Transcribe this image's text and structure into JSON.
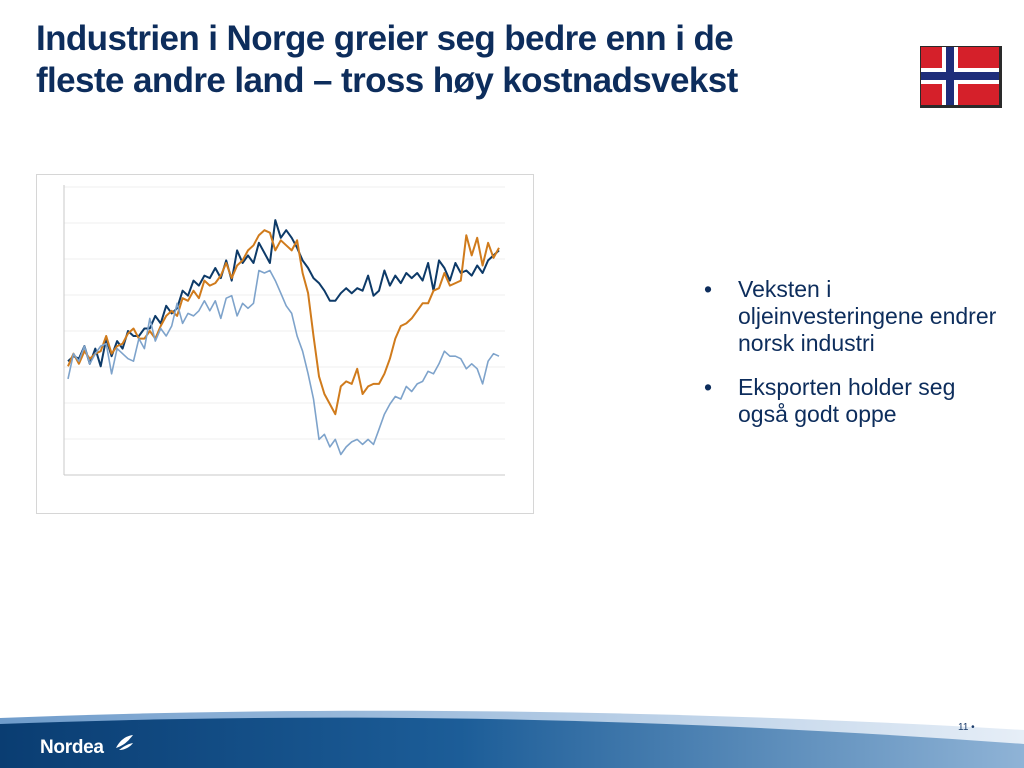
{
  "slide": {
    "title_line1": "Industrien i Norge greier seg bedre enn i de",
    "title_line2": "fleste andre land – tross høy kostnadsvekst",
    "bullets": [
      "Veksten i oljeinvesteringene endrer norsk industri",
      "Eksporten holder seg også godt oppe"
    ],
    "bullet_symbol": "•",
    "page_number": "11 •",
    "logo_text": "Nordea",
    "flag_icon": "norway-flag-icon",
    "colors": {
      "title": "#0d2d5c",
      "flag_red": "#d5202a",
      "flag_blue": "#1e2d7a",
      "footer_blue": "#0b4a86"
    }
  },
  "chart_data": {
    "type": "line",
    "x": [
      0,
      1,
      2,
      3,
      4,
      5,
      6,
      7,
      8,
      9,
      10,
      11,
      12,
      13,
      14,
      15,
      16,
      17,
      18,
      19,
      20,
      21,
      22,
      23,
      24,
      25,
      26,
      27,
      28,
      29,
      30,
      31,
      32,
      33,
      34,
      35,
      36,
      37,
      38,
      39,
      40,
      41,
      42,
      43,
      44,
      45,
      46,
      47,
      48,
      49,
      50,
      51,
      52,
      53,
      54,
      55,
      56,
      57,
      58,
      59,
      60,
      61,
      62,
      63,
      64,
      65,
      66,
      67,
      68,
      69,
      70,
      71,
      72,
      73,
      74,
      75,
      76,
      77,
      78,
      79
    ],
    "ylim": [
      0,
      100
    ],
    "grid": true,
    "series": [
      {
        "color": "#0d3a68",
        "values": [
          38,
          40,
          39,
          44,
          37,
          43,
          36,
          47,
          40,
          46,
          43,
          50,
          48,
          48,
          51,
          51,
          56,
          53,
          60,
          57,
          59,
          66,
          64,
          70,
          68,
          72,
          71,
          75,
          71,
          78,
          70,
          82,
          77,
          80,
          77,
          85,
          81,
          77,
          94,
          87,
          90,
          87,
          83,
          78,
          75,
          71,
          69,
          66,
          62,
          62,
          65,
          67,
          65,
          67,
          66,
          72,
          64,
          66,
          74,
          68,
          72,
          69,
          73,
          71,
          73,
          70,
          77,
          66,
          78,
          75,
          70,
          77,
          73,
          74,
          72,
          76,
          73,
          78,
          80,
          82
        ]
      },
      {
        "color": "#d07b1c",
        "values": [
          36,
          41,
          37,
          42,
          39,
          41,
          42,
          48,
          41,
          44,
          45,
          49,
          51,
          47,
          47,
          50,
          47,
          52,
          56,
          58,
          56,
          63,
          62,
          66,
          63,
          70,
          68,
          69,
          72,
          77,
          71,
          76,
          78,
          82,
          84,
          88,
          90,
          89,
          82,
          86,
          84,
          82,
          86,
          73,
          65,
          48,
          32,
          25,
          21,
          17,
          28,
          30,
          29,
          35,
          25,
          28,
          29,
          29,
          33,
          39,
          47,
          52,
          53,
          55,
          58,
          61,
          61,
          66,
          67,
          73,
          68,
          69,
          70,
          88,
          80,
          87,
          76,
          85,
          79,
          83
        ]
      },
      {
        "color": "#7ea3cb",
        "values": [
          31,
          41,
          38,
          44,
          37,
          41,
          44,
          45,
          33,
          43,
          41,
          39,
          38,
          47,
          43,
          55,
          46,
          51,
          48,
          52,
          61,
          53,
          57,
          56,
          58,
          62,
          58,
          62,
          55,
          63,
          64,
          56,
          61,
          59,
          61,
          74,
          73,
          74,
          70,
          65,
          60,
          57,
          48,
          42,
          33,
          23,
          7,
          9,
          4,
          7,
          1,
          4,
          6,
          7,
          5,
          7,
          5,
          11,
          17,
          21,
          24,
          23,
          28,
          26,
          29,
          30,
          34,
          33,
          37,
          42,
          40,
          40,
          39,
          35,
          37,
          35,
          29,
          38,
          41,
          40
        ]
      }
    ]
  }
}
